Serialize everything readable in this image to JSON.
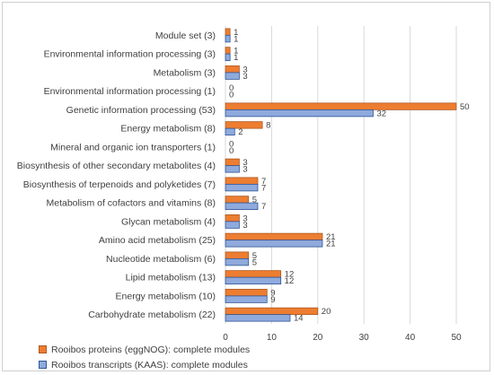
{
  "chart_data": {
    "type": "bar",
    "orientation": "horizontal",
    "categories": [
      "Module set (3)",
      "Environmental information processing (3)",
      "Metabolism (3)",
      "Environmental information processing (1)",
      "Genetic information processing (53)",
      "Energy metabolism (8)",
      "Mineral and organic ion transporters (1)",
      "Biosynthesis of other secondary metabolites (4)",
      "Biosynthesis of terpenoids and polyketides (7)",
      "Metabolism of cofactors and vitamins (8)",
      "Glycan metabolism (4)",
      "Amino acid metabolism (25)",
      "Nucleotide metabolism (6)",
      "Lipid metabolism (13)",
      "Energy metabolism (10)",
      "Carbohydrate metabolism (22)"
    ],
    "series": [
      {
        "name": "Rooibos proteins (eggNOG): complete modules",
        "color": "#ED7D31",
        "border": "#AE5A21",
        "values": [
          1,
          1,
          3,
          0,
          50,
          8,
          0,
          3,
          7,
          5,
          3,
          21,
          5,
          12,
          9,
          20
        ]
      },
      {
        "name": "Rooibos transcripts (KAAS): complete modules",
        "color": "#8FAADC",
        "border": "#2F5597",
        "values": [
          1,
          1,
          3,
          0,
          32,
          2,
          0,
          3,
          7,
          7,
          3,
          21,
          5,
          12,
          9,
          14
        ]
      }
    ],
    "xlim": [
      0,
      50
    ],
    "xticks": [
      0,
      10,
      20,
      30,
      40,
      50
    ],
    "grid": true,
    "legend_position": "bottom-left",
    "data_labels": true
  }
}
